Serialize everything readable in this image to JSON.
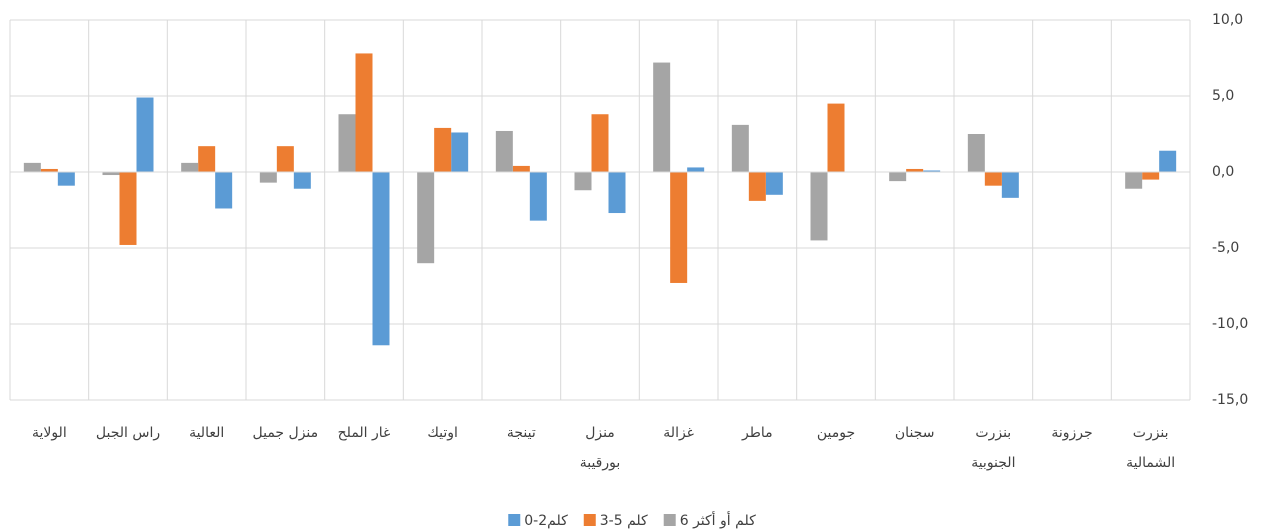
{
  "chart_data": {
    "type": "bar",
    "categories": [
      "الولاية",
      "راس الجبل",
      "العالية",
      "منزل جميل",
      "غار الملح",
      "اوتيك",
      "تينجة",
      "منزل بورقيبة",
      "غزالة",
      "ماطر",
      "جومين",
      "سجنان",
      "بنزرت الجنوبية",
      "جرزونة",
      "بنزرت الشمالية"
    ],
    "series": [
      {
        "name": "0-2كلم",
        "color": "#5b9bd5",
        "values": [
          -0.9,
          4.9,
          -2.4,
          -1.1,
          -11.4,
          2.6,
          -3.2,
          -2.7,
          0.3,
          -1.5,
          0,
          0.1,
          -1.7,
          0,
          1.4
        ]
      },
      {
        "name": "3-5 كلم",
        "color": "#ed7d31",
        "values": [
          0.2,
          -4.8,
          1.7,
          1.7,
          7.8,
          2.9,
          0.4,
          3.8,
          -7.3,
          -1.9,
          4.5,
          0.2,
          -0.9,
          0,
          -0.5
        ]
      },
      {
        "name": "6 كلم أو أكثر",
        "color": "#a5a5a5",
        "values": [
          0.6,
          -0.2,
          0.6,
          -0.7,
          3.8,
          -6.0,
          2.7,
          -1.2,
          7.2,
          3.1,
          -4.5,
          -0.6,
          2.5,
          0,
          -1.1
        ]
      }
    ],
    "ylim": [
      -15,
      10
    ],
    "yticks": [
      {
        "value": -15,
        "label": "-15,0"
      },
      {
        "value": -10,
        "label": "-10,0"
      },
      {
        "value": -5,
        "label": "-5,0"
      },
      {
        "value": 0,
        "label": "0,0"
      },
      {
        "value": 5,
        "label": "5,0"
      },
      {
        "value": 10,
        "label": "10,0"
      }
    ],
    "grid": true
  }
}
